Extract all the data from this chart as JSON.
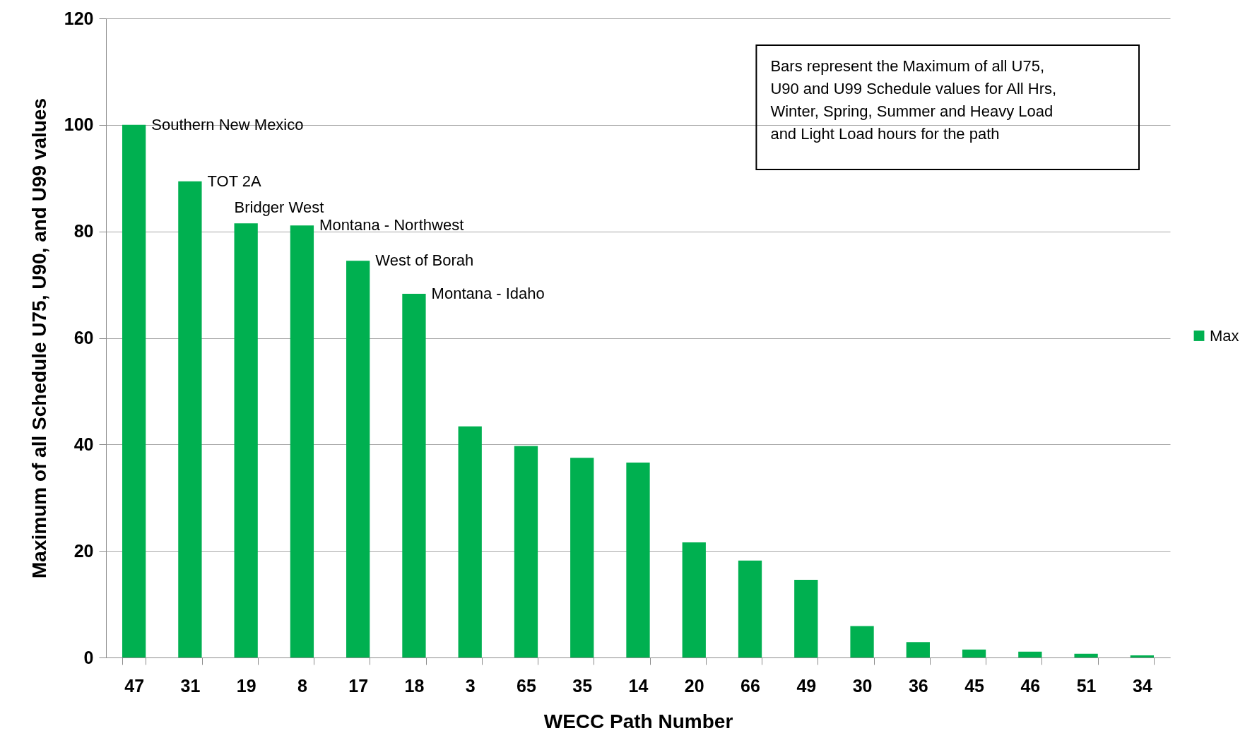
{
  "chart_data": {
    "type": "bar",
    "xlabel": "WECC Path Number",
    "ylabel": "Maximum of all Schedule U75, U90, and U99 values",
    "categories": [
      "47",
      "31",
      "19",
      "8",
      "17",
      "18",
      "3",
      "65",
      "35",
      "14",
      "20",
      "66",
      "49",
      "30",
      "36",
      "45",
      "46",
      "51",
      "34"
    ],
    "series": [
      {
        "name": "Max",
        "color": "#00b050",
        "values": [
          100,
          89.4,
          81.5,
          81.1,
          74.5,
          68.3,
          43.4,
          39.7,
          37.5,
          36.6,
          21.6,
          18.2,
          14.6,
          5.9,
          2.9,
          1.5,
          1.1,
          0.7,
          0.4
        ]
      }
    ],
    "ylim": [
      0,
      120
    ],
    "yticks": [
      0,
      20,
      40,
      60,
      80,
      100,
      120
    ],
    "grid": "y",
    "legend": "right",
    "annotations": [
      {
        "text": "Southern New Mexico",
        "x": "47",
        "y": 100
      },
      {
        "text": "TOT 2A",
        "x": "31",
        "y": 89.4
      },
      {
        "text": "Bridger West",
        "x": "19",
        "y": 81.5
      },
      {
        "text": "Montana - Northwest",
        "x": "8",
        "y": 81.1
      },
      {
        "text": "West of Borah",
        "x": "17",
        "y": 74.5
      },
      {
        "text": "Montana - Idaho",
        "x": "18",
        "y": 68.3
      },
      "Bars represent the Maximum of all U75, U90 and U99 Schedule values for All Hrs, Winter, Spring, Summer and Heavy Load and Light Load hours for the path"
    ]
  }
}
